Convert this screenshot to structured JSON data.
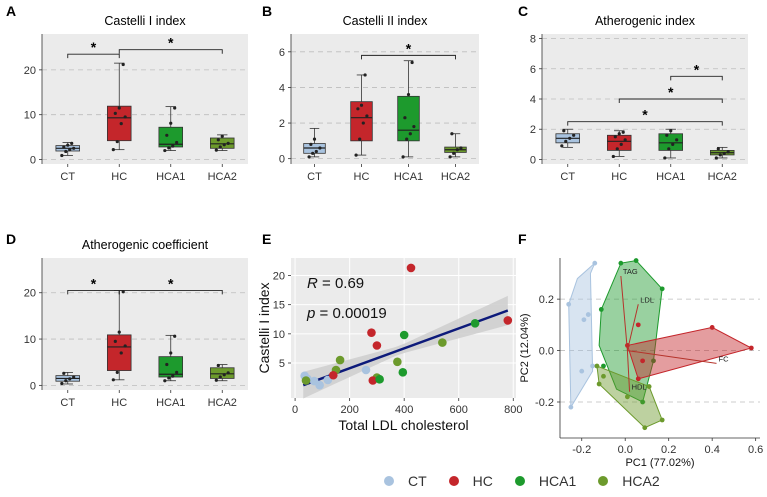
{
  "colors": {
    "CT": "#a9c3df",
    "HC": "#c4262b",
    "HCA1": "#1d9a2d",
    "HCA2": "#6c9a2c",
    "panel_bg": "#ebebeb",
    "grid": "#bdbdbd",
    "regression": "#0d1a7a"
  },
  "legend": {
    "items": [
      {
        "label": "CT",
        "color": "#a9c3df"
      },
      {
        "label": "HC",
        "color": "#c4262b"
      },
      {
        "label": "HCA1",
        "color": "#1d9a2d"
      },
      {
        "label": "HCA2",
        "color": "#6c9a2c"
      }
    ]
  },
  "chart_data": [
    {
      "id": "A",
      "letter": "A",
      "type": "box",
      "title": "Castelli I index",
      "categories": [
        "CT",
        "HC",
        "HCA1",
        "HCA2"
      ],
      "ylim": [
        -1,
        28
      ],
      "yticks": [
        0,
        10,
        20
      ],
      "grid": true,
      "boxes": [
        {
          "min": 0.9,
          "q1": 1.9,
          "median": 2.5,
          "q3": 3.1,
          "max": 3.8,
          "points": [
            0.9,
            1.8,
            2.2,
            2.5,
            2.8,
            3.2,
            3.6
          ]
        },
        {
          "min": 2.2,
          "q1": 4.2,
          "median": 9.3,
          "q3": 11.9,
          "max": 21.5,
          "points": [
            2.2,
            4.0,
            8.0,
            9.5,
            10.3,
            11.5,
            21.2
          ]
        },
        {
          "min": 2.0,
          "q1": 2.8,
          "median": 3.4,
          "q3": 7.2,
          "max": 11.8,
          "points": [
            2.0,
            2.6,
            3.0,
            3.8,
            5.4,
            8.1,
            11.5
          ]
        },
        {
          "min": 2.0,
          "q1": 2.5,
          "median": 3.5,
          "q3": 4.8,
          "max": 5.5,
          "points": [
            2.1,
            2.8,
            3.3,
            3.6,
            4.4,
            5.2
          ]
        }
      ],
      "brackets": [
        {
          "from": 0,
          "to": 1,
          "y": 23.5,
          "label": "*"
        },
        {
          "from": 1,
          "to": 3,
          "y": 24.5,
          "label": "*"
        }
      ]
    },
    {
      "id": "B",
      "letter": "B",
      "type": "box",
      "title": "Castelli II index",
      "categories": [
        "CT",
        "HC",
        "HCA1",
        "HCA2"
      ],
      "ylim": [
        -0.3,
        7.0
      ],
      "yticks": [
        0,
        2,
        4,
        6
      ],
      "grid": true,
      "boxes": [
        {
          "min": 0.1,
          "q1": 0.3,
          "median": 0.6,
          "q3": 0.85,
          "max": 1.7,
          "points": [
            0.1,
            0.3,
            0.4,
            0.6,
            0.8,
            1.1
          ]
        },
        {
          "min": 0.2,
          "q1": 1.0,
          "median": 2.3,
          "q3": 3.2,
          "max": 4.7,
          "points": [
            0.2,
            1.1,
            2.0,
            2.4,
            2.8,
            3.0,
            4.7
          ]
        },
        {
          "min": 0.1,
          "q1": 1.0,
          "median": 1.6,
          "q3": 3.5,
          "max": 5.5,
          "points": [
            0.1,
            1.1,
            1.4,
            1.8,
            2.3,
            3.6,
            5.4
          ]
        },
        {
          "min": 0.1,
          "q1": 0.35,
          "median": 0.5,
          "q3": 0.65,
          "max": 1.4,
          "points": [
            0.1,
            0.3,
            0.5,
            0.6,
            1.4
          ]
        }
      ],
      "brackets": [
        {
          "from": 1,
          "to": 3,
          "y": 5.8,
          "label": "*"
        }
      ]
    },
    {
      "id": "C",
      "letter": "C",
      "type": "box",
      "title": "Atherogenic index",
      "categories": [
        "CT",
        "HC",
        "HCA1",
        "HCA2"
      ],
      "ylim": [
        -0.3,
        8.3
      ],
      "yticks": [
        0,
        2,
        4,
        6,
        8
      ],
      "grid": true,
      "boxes": [
        {
          "min": 0.8,
          "q1": 1.1,
          "median": 1.4,
          "q3": 1.7,
          "max": 2.0,
          "points": [
            0.9,
            1.2,
            1.4,
            1.6,
            1.9
          ]
        },
        {
          "min": 0.2,
          "q1": 0.6,
          "median": 1.2,
          "q3": 1.6,
          "max": 1.9,
          "points": [
            0.2,
            0.7,
            1.0,
            1.3,
            1.5,
            1.7,
            1.8
          ]
        },
        {
          "min": 0.1,
          "q1": 0.6,
          "median": 1.1,
          "q3": 1.7,
          "max": 2.0,
          "points": [
            0.1,
            0.7,
            1.0,
            1.3,
            1.6,
            1.9
          ]
        },
        {
          "min": 0.1,
          "q1": 0.3,
          "median": 0.45,
          "q3": 0.6,
          "max": 0.8,
          "points": [
            0.1,
            0.3,
            0.4,
            0.5,
            0.7
          ]
        }
      ],
      "brackets": [
        {
          "from": 2,
          "to": 3,
          "y": 5.5,
          "label": "*"
        },
        {
          "from": 1,
          "to": 3,
          "y": 4.0,
          "label": "*"
        },
        {
          "from": 0,
          "to": 3,
          "y": 2.5,
          "label": "*"
        }
      ]
    },
    {
      "id": "D",
      "letter": "D",
      "type": "box",
      "title": "Atherogenic coefficient",
      "categories": [
        "CT",
        "HC",
        "HCA1",
        "HCA2"
      ],
      "ylim": [
        -1,
        27.5
      ],
      "yticks": [
        0,
        10,
        20
      ],
      "grid": true,
      "boxes": [
        {
          "min": 0.3,
          "q1": 0.9,
          "median": 1.5,
          "q3": 2.1,
          "max": 2.8,
          "points": [
            0.4,
            1.0,
            1.4,
            1.8,
            2.6
          ]
        },
        {
          "min": 1.2,
          "q1": 3.2,
          "median": 8.3,
          "q3": 10.9,
          "max": 20.5,
          "points": [
            1.2,
            2.8,
            7.0,
            8.5,
            9.5,
            11.5,
            20.2
          ]
        },
        {
          "min": 1.0,
          "q1": 1.8,
          "median": 2.4,
          "q3": 6.2,
          "max": 10.8,
          "points": [
            1.0,
            1.6,
            2.0,
            2.8,
            4.5,
            7.0,
            10.6
          ]
        },
        {
          "min": 1.0,
          "q1": 1.5,
          "median": 2.5,
          "q3": 3.8,
          "max": 4.5,
          "points": [
            1.1,
            1.8,
            2.3,
            2.7,
            4.3
          ]
        }
      ],
      "brackets": [
        {
          "from": 0,
          "to": 1,
          "y": 20.5,
          "label": "*"
        },
        {
          "from": 1,
          "to": 3,
          "y": 20.5,
          "label": "*"
        }
      ]
    },
    {
      "id": "E",
      "letter": "E",
      "type": "scatter",
      "xlabel": "Total LDL cholesterol",
      "ylabel": "Castelli I index",
      "xlim": [
        -15,
        810
      ],
      "ylim": [
        -1,
        23
      ],
      "xticks": [
        0,
        200,
        400,
        600,
        800
      ],
      "yticks": [
        5,
        10,
        15,
        20
      ],
      "grid": true,
      "annotation": {
        "r_label": "R",
        "r_value": " = 0.69",
        "p_label": "p",
        "p_value": " = 0.00019"
      },
      "regression": {
        "x0": 30,
        "y0": 1.2,
        "x1": 780,
        "y1": 14.0,
        "band_center": 380,
        "band_half_min": 0.7,
        "band_half_k": 0.0045
      },
      "points": [
        {
          "x": 35,
          "y": 2.8,
          "g": "CT"
        },
        {
          "x": 45,
          "y": 2.3,
          "g": "CT"
        },
        {
          "x": 70,
          "y": 1.9,
          "g": "CT"
        },
        {
          "x": 90,
          "y": 1.2,
          "g": "CT"
        },
        {
          "x": 120,
          "y": 2.1,
          "g": "CT"
        },
        {
          "x": 260,
          "y": 3.8,
          "g": "CT"
        },
        {
          "x": 40,
          "y": 2.0,
          "g": "HCA2"
        },
        {
          "x": 150,
          "y": 3.8,
          "g": "HCA2"
        },
        {
          "x": 165,
          "y": 5.5,
          "g": "HCA2"
        },
        {
          "x": 300,
          "y": 2.5,
          "g": "HCA2"
        },
        {
          "x": 375,
          "y": 5.2,
          "g": "HCA2"
        },
        {
          "x": 540,
          "y": 8.5,
          "g": "HCA2"
        },
        {
          "x": 140,
          "y": 2.9,
          "g": "HC"
        },
        {
          "x": 280,
          "y": 10.2,
          "g": "HC"
        },
        {
          "x": 300,
          "y": 8.0,
          "g": "HC"
        },
        {
          "x": 285,
          "y": 2.0,
          "g": "HC"
        },
        {
          "x": 425,
          "y": 21.3,
          "g": "HC"
        },
        {
          "x": 780,
          "y": 12.3,
          "g": "HC"
        },
        {
          "x": 310,
          "y": 2.2,
          "g": "HCA1"
        },
        {
          "x": 395,
          "y": 3.4,
          "g": "HCA1"
        },
        {
          "x": 400,
          "y": 9.8,
          "g": "HCA1"
        },
        {
          "x": 660,
          "y": 11.8,
          "g": "HCA1"
        }
      ]
    },
    {
      "id": "F",
      "letter": "F",
      "type": "pca",
      "xlabel": "PC1 (77.02%)",
      "ylabel": "PC2 (12.04%)",
      "xlim": [
        -0.3,
        0.62
      ],
      "ylim": [
        -0.34,
        0.36
      ],
      "xticks": [
        -0.2,
        0.0,
        0.2,
        0.4,
        0.6
      ],
      "yticks": [
        -0.2,
        0.0,
        0.2
      ],
      "grid": true,
      "hulls": [
        {
          "g": "CT",
          "poly": [
            [
              -0.14,
              0.34
            ],
            [
              -0.22,
              0.28
            ],
            [
              -0.26,
              0.18
            ],
            [
              -0.25,
              -0.22
            ],
            [
              -0.15,
              -0.08
            ],
            [
              -0.16,
              0.3
            ]
          ],
          "pts": [
            [
              -0.14,
              0.34
            ],
            [
              -0.26,
              0.18
            ],
            [
              -0.25,
              -0.22
            ],
            [
              -0.19,
              0.12
            ],
            [
              -0.17,
              0.14
            ],
            [
              -0.2,
              -0.08
            ],
            [
              -0.15,
              -0.06
            ]
          ]
        },
        {
          "g": "HCA1",
          "poly": [
            [
              -0.11,
              0.16
            ],
            [
              -0.02,
              0.34
            ],
            [
              0.05,
              0.35
            ],
            [
              0.17,
              0.24
            ],
            [
              0.13,
              -0.04
            ],
            [
              0.08,
              -0.2
            ],
            [
              -0.04,
              -0.15
            ],
            [
              -0.12,
              0.02
            ]
          ],
          "pts": [
            [
              -0.02,
              0.34
            ],
            [
              0.05,
              0.35
            ],
            [
              0.17,
              0.24
            ],
            [
              0.13,
              -0.04
            ],
            [
              -0.11,
              0.16
            ],
            [
              -0.1,
              -0.06
            ],
            [
              0.08,
              -0.2
            ]
          ]
        },
        {
          "g": "HC",
          "poly": [
            [
              0.01,
              0.02
            ],
            [
              0.4,
              0.09
            ],
            [
              0.58,
              0.01
            ],
            [
              0.06,
              -0.11
            ]
          ],
          "pts": [
            [
              0.01,
              0.02
            ],
            [
              0.4,
              0.09
            ],
            [
              0.58,
              0.01
            ],
            [
              0.06,
              -0.11
            ],
            [
              0.06,
              0.1
            ],
            [
              0.08,
              -0.04
            ]
          ]
        },
        {
          "g": "HCA2",
          "poly": [
            [
              -0.13,
              -0.06
            ],
            [
              -0.04,
              -0.09
            ],
            [
              0.11,
              -0.14
            ],
            [
              0.17,
              -0.27
            ],
            [
              0.09,
              -0.3
            ],
            [
              -0.12,
              -0.13
            ]
          ],
          "pts": [
            [
              -0.13,
              -0.06
            ],
            [
              -0.1,
              -0.1
            ],
            [
              -0.12,
              -0.13
            ],
            [
              0.09,
              -0.3
            ],
            [
              0.17,
              -0.27
            ],
            [
              0.11,
              -0.14
            ],
            [
              0.01,
              -0.18
            ]
          ]
        }
      ],
      "loadings": [
        {
          "label": "TAG",
          "x": -0.02,
          "y": 0.29
        },
        {
          "label": "LDL",
          "x": 0.06,
          "y": 0.18
        },
        {
          "label": "FC",
          "x": 0.42,
          "y": -0.05
        },
        {
          "label": "HDL",
          "x": 0.02,
          "y": -0.16
        }
      ]
    }
  ]
}
